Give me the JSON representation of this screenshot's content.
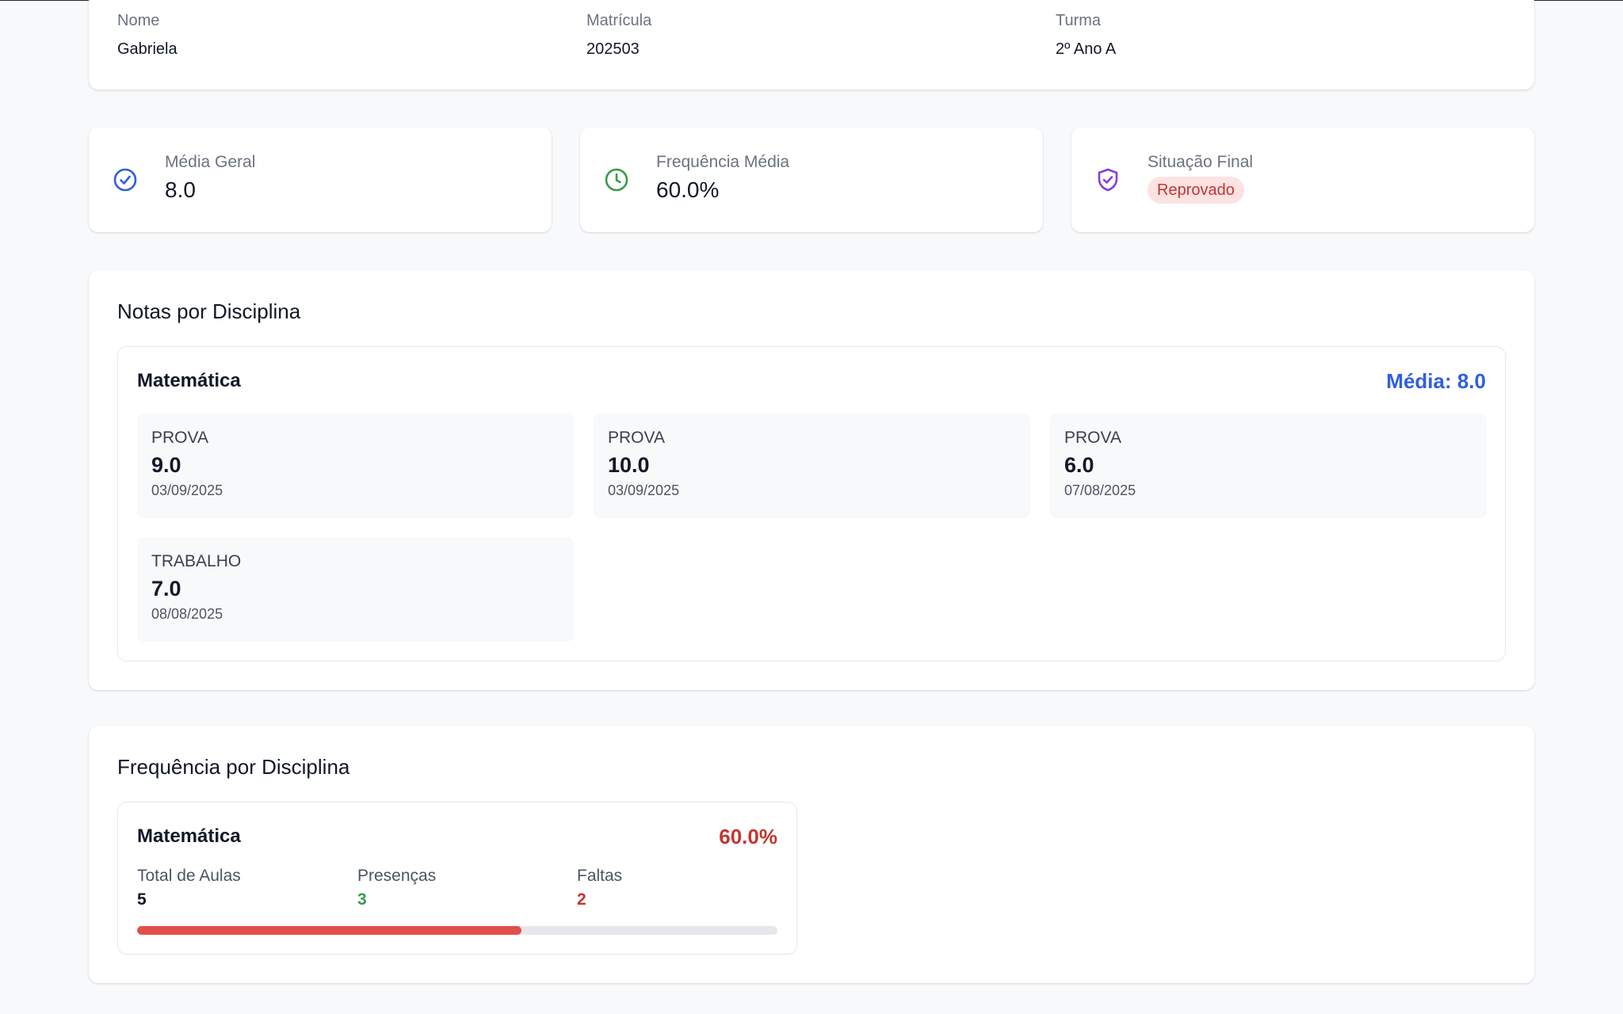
{
  "student": {
    "name_label": "Nome",
    "name_value": "Gabriela",
    "enrollment_label": "Matrícula",
    "enrollment_value": "202503",
    "class_label": "Turma",
    "class_value": "2º Ano A"
  },
  "stats": {
    "average_label": "Média Geral",
    "average_value": "8.0",
    "attendance_label": "Frequência Média",
    "attendance_value": "60.0%",
    "status_label": "Situação Final",
    "status_value": "Reprovado"
  },
  "grades": {
    "title": "Notas por Disciplina",
    "subject": "Matemática",
    "average": "Média: 8.0",
    "items": [
      {
        "type": "PROVA",
        "value": "9.0",
        "date": "03/09/2025"
      },
      {
        "type": "PROVA",
        "value": "10.0",
        "date": "03/09/2025"
      },
      {
        "type": "PROVA",
        "value": "6.0",
        "date": "07/08/2025"
      },
      {
        "type": "TRABALHO",
        "value": "7.0",
        "date": "08/08/2025"
      }
    ]
  },
  "frequency": {
    "title": "Frequência por Disciplina",
    "subject": "Matemática",
    "percent": "60.0%",
    "progress_fraction": 0.6,
    "total_label": "Total de Aulas",
    "total_value": "5",
    "present_label": "Presenças",
    "present_value": "3",
    "absent_label": "Faltas",
    "absent_value": "2"
  },
  "colors": {
    "accent_blue": "#2f5ee0",
    "success_green": "#3a9a4a",
    "danger_red": "#c2362f",
    "purple": "#8a3ae0"
  },
  "icons": {
    "average": "check-circle-icon",
    "attendance": "clock-icon",
    "status": "shield-check-icon"
  }
}
